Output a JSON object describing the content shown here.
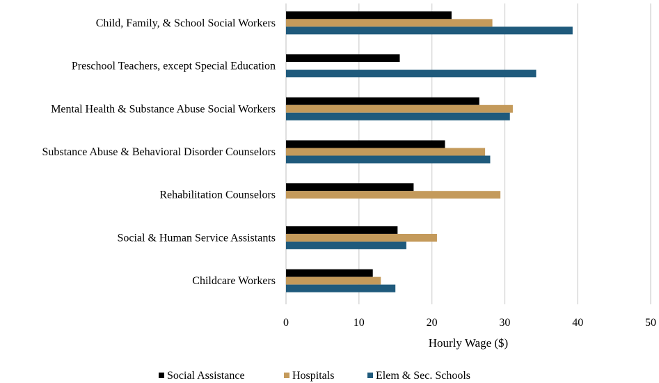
{
  "chart_data": {
    "type": "bar",
    "orientation": "horizontal",
    "categories": [
      "Child, Family, & School Social Workers",
      "Preschool Teachers, except Special Education",
      "Mental Health & Substance Abuse Social Workers",
      "Substance Abuse & Behavioral Disorder Counselors",
      "Rehabilitation Counselors",
      "Social & Human Service Assistants",
      "Childcare Workers"
    ],
    "series": [
      {
        "name": "Social Assistance",
        "color": "#000000",
        "values": [
          22.7,
          15.6,
          26.5,
          21.8,
          17.5,
          15.3,
          11.9
        ]
      },
      {
        "name": "Hospitals",
        "color": "#c49a5b",
        "values": [
          28.3,
          null,
          31.1,
          27.3,
          29.4,
          20.7,
          13.0
        ]
      },
      {
        "name": "Elem & Sec. Schools",
        "color": "#1f5a7c",
        "values": [
          39.3,
          34.3,
          30.7,
          28.0,
          null,
          16.5,
          15.0
        ]
      }
    ],
    "xlabel": "Hourly Wage ($)",
    "xlim": [
      0,
      50
    ],
    "xticks": [
      "0",
      "10",
      "20",
      "30",
      "40",
      "50"
    ],
    "grid": "vertical",
    "legend_position": "bottom"
  }
}
